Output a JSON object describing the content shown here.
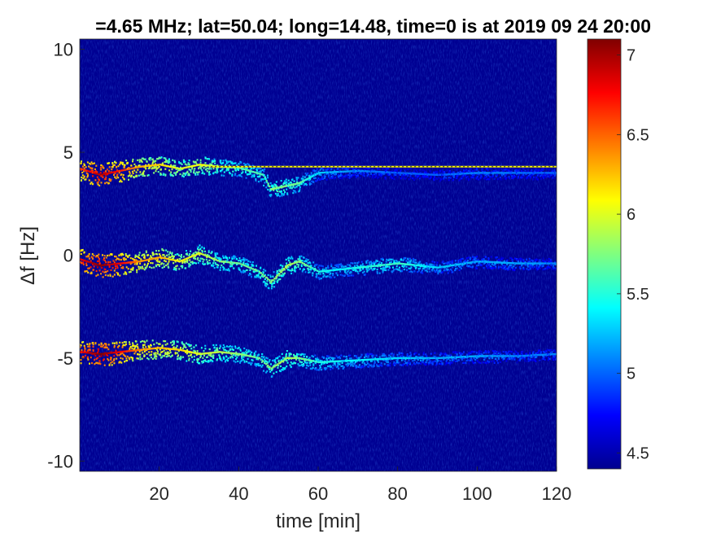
{
  "figure": {
    "title": "=4.65 MHz;  lat=50.04; long=14.48, time=0 is at 2019 09 24 20:00"
  },
  "colors": {
    "background": "#000080",
    "colormap": "jet"
  },
  "chart_data": {
    "type": "heatmap",
    "title": "=4.65 MHz;  lat=50.04; long=14.48, time=0 is at 2019 09 24 20:00",
    "xlabel": "time [min]",
    "ylabel": "Δf [Hz]",
    "xlim": [
      0,
      120
    ],
    "ylim": [
      -10.5,
      10.5
    ],
    "xticks": [
      20,
      40,
      60,
      80,
      100,
      120
    ],
    "xtick_labels": [
      "20",
      "40",
      "60",
      "80",
      "100",
      "120"
    ],
    "yticks": [
      -10,
      -5,
      0,
      5,
      10
    ],
    "ytick_labels": [
      "-10",
      "-5",
      "0",
      "5",
      "10"
    ],
    "colorbar": {
      "range": [
        4.4,
        7.1
      ],
      "ticks": [
        4.5,
        5,
        5.5,
        6,
        6.5,
        7
      ],
      "tick_labels": [
        "4.5",
        "5",
        "5.5",
        "6",
        "6.5",
        "7"
      ]
    },
    "background_value": 4.45,
    "series": [
      {
        "points": [
          [
            0,
            4.2,
            6.6
          ],
          [
            5,
            3.9,
            7.0
          ],
          [
            10,
            4.1,
            6.7
          ],
          [
            15,
            4.3,
            6.3
          ],
          [
            20,
            4.4,
            6.2
          ],
          [
            25,
            4.2,
            6.0
          ],
          [
            30,
            4.4,
            6.1
          ],
          [
            35,
            4.3,
            5.8
          ],
          [
            40,
            4.25,
            5.7
          ],
          [
            46,
            3.9,
            5.6
          ],
          [
            48,
            3.2,
            5.8
          ],
          [
            55,
            3.5,
            5.7
          ],
          [
            60,
            4.0,
            5.3
          ],
          [
            70,
            4.1,
            5.1
          ],
          [
            80,
            4.0,
            5.0
          ],
          [
            90,
            3.9,
            5.0
          ],
          [
            100,
            4.0,
            5.1
          ],
          [
            120,
            4.0,
            5.0
          ]
        ],
        "line": {
          "y": 4.3,
          "from": 33,
          "to": 120,
          "value": 6.1
        }
      },
      {
        "points": [
          [
            0,
            -0.2,
            6.8
          ],
          [
            5,
            -0.5,
            7.1
          ],
          [
            10,
            -0.4,
            6.8
          ],
          [
            15,
            -0.3,
            6.4
          ],
          [
            20,
            -0.1,
            6.3
          ],
          [
            25,
            -0.3,
            6.1
          ],
          [
            30,
            0.1,
            6.0
          ],
          [
            35,
            -0.3,
            5.8
          ],
          [
            40,
            -0.4,
            5.7
          ],
          [
            45,
            -0.8,
            5.7
          ],
          [
            48,
            -1.3,
            5.8
          ],
          [
            52,
            -0.5,
            5.9
          ],
          [
            55,
            -0.3,
            5.8
          ],
          [
            60,
            -0.8,
            5.5
          ],
          [
            65,
            -0.7,
            5.4
          ],
          [
            70,
            -0.6,
            5.5
          ],
          [
            80,
            -0.4,
            5.6
          ],
          [
            90,
            -0.6,
            5.3
          ],
          [
            100,
            -0.3,
            5.2
          ],
          [
            110,
            -0.4,
            5.2
          ],
          [
            120,
            -0.4,
            5.1
          ]
        ]
      },
      {
        "points": [
          [
            0,
            -4.7,
            6.8
          ],
          [
            5,
            -4.8,
            7.1
          ],
          [
            10,
            -4.7,
            6.8
          ],
          [
            15,
            -4.6,
            6.4
          ],
          [
            20,
            -4.5,
            6.3
          ],
          [
            25,
            -4.6,
            6.2
          ],
          [
            30,
            -4.8,
            6.0
          ],
          [
            35,
            -4.7,
            5.9
          ],
          [
            40,
            -4.8,
            5.8
          ],
          [
            45,
            -5.0,
            5.7
          ],
          [
            48,
            -5.5,
            5.8
          ],
          [
            52,
            -5.0,
            5.9
          ],
          [
            55,
            -5.0,
            5.8
          ],
          [
            60,
            -5.2,
            5.5
          ],
          [
            70,
            -5.1,
            5.4
          ],
          [
            80,
            -5.0,
            5.3
          ],
          [
            90,
            -5.0,
            5.2
          ],
          [
            100,
            -4.9,
            5.2
          ],
          [
            110,
            -4.9,
            5.1
          ],
          [
            120,
            -4.8,
            5.1
          ]
        ]
      }
    ]
  }
}
